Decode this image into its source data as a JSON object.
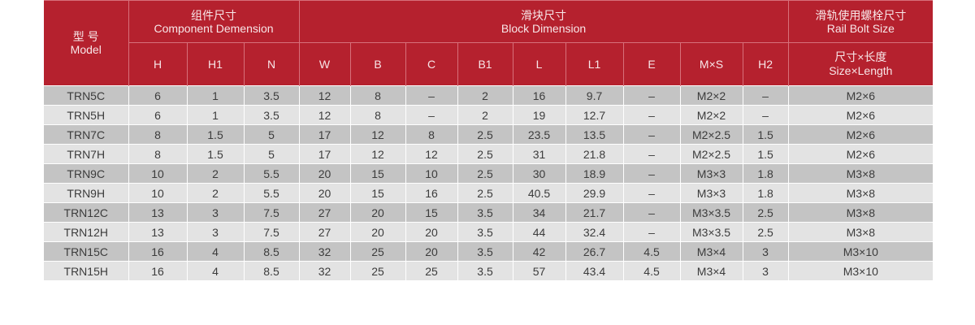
{
  "header": {
    "model_zh": "型 号",
    "model_en": "Model",
    "component_zh": "组件尺寸",
    "component_en": "Component Demension",
    "block_zh": "滑块尺寸",
    "block_en": "Block Dimension",
    "bolt_zh": "滑轨使用螺栓尺寸",
    "bolt_en": "Rail Bolt Size",
    "columns": [
      "H",
      "H1",
      "N",
      "W",
      "B",
      "C",
      "B1",
      "L",
      "L1",
      "E",
      "M×S",
      "H2"
    ],
    "size_length_zh": "尺寸×长度",
    "size_length_en": "Size×Length"
  },
  "rows": [
    [
      "TRN5C",
      "6",
      "1",
      "3.5",
      "12",
      "8",
      "–",
      "2",
      "16",
      "9.7",
      "–",
      "M2×2",
      "–",
      "M2×6"
    ],
    [
      "TRN5H",
      "6",
      "1",
      "3.5",
      "12",
      "8",
      "–",
      "2",
      "19",
      "12.7",
      "–",
      "M2×2",
      "–",
      "M2×6"
    ],
    [
      "TRN7C",
      "8",
      "1.5",
      "5",
      "17",
      "12",
      "8",
      "2.5",
      "23.5",
      "13.5",
      "–",
      "M2×2.5",
      "1.5",
      "M2×6"
    ],
    [
      "TRN7H",
      "8",
      "1.5",
      "5",
      "17",
      "12",
      "12",
      "2.5",
      "31",
      "21.8",
      "–",
      "M2×2.5",
      "1.5",
      "M2×6"
    ],
    [
      "TRN9C",
      "10",
      "2",
      "5.5",
      "20",
      "15",
      "10",
      "2.5",
      "30",
      "18.9",
      "–",
      "M3×3",
      "1.8",
      "M3×8"
    ],
    [
      "TRN9H",
      "10",
      "2",
      "5.5",
      "20",
      "15",
      "16",
      "2.5",
      "40.5",
      "29.9",
      "–",
      "M3×3",
      "1.8",
      "M3×8"
    ],
    [
      "TRN12C",
      "13",
      "3",
      "7.5",
      "27",
      "20",
      "15",
      "3.5",
      "34",
      "21.7",
      "–",
      "M3×3.5",
      "2.5",
      "M3×8"
    ],
    [
      "TRN12H",
      "13",
      "3",
      "7.5",
      "27",
      "20",
      "20",
      "3.5",
      "44",
      "32.4",
      "–",
      "M3×3.5",
      "2.5",
      "M3×8"
    ],
    [
      "TRN15C",
      "16",
      "4",
      "8.5",
      "32",
      "25",
      "20",
      "3.5",
      "42",
      "26.7",
      "4.5",
      "M3×4",
      "3",
      "M3×10"
    ],
    [
      "TRN15H",
      "16",
      "4",
      "8.5",
      "32",
      "25",
      "25",
      "3.5",
      "57",
      "43.4",
      "4.5",
      "M3×4",
      "3",
      "M3×10"
    ]
  ]
}
